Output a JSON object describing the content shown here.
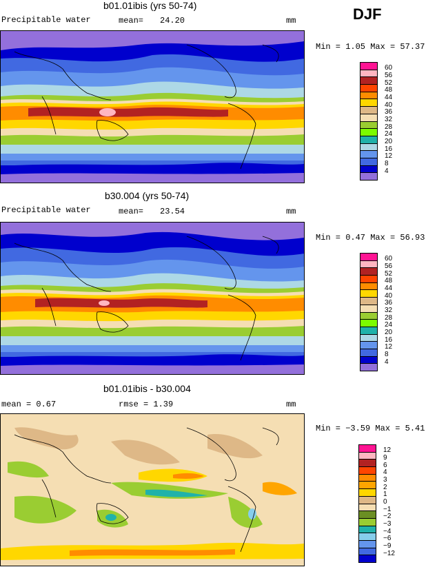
{
  "season": "DJF",
  "panels": [
    {
      "title": "b01.01ibis (yrs 50-74)",
      "field": "Precipitable water",
      "mean_label": "mean=",
      "mean_value": "24.20",
      "units": "mm",
      "minmax": "Min =    1.05 Max =   57.37",
      "levels": [
        "60",
        "56",
        "52",
        "48",
        "44",
        "40",
        "36",
        "32",
        "28",
        "24",
        "20",
        "16",
        "12",
        "8",
        "4"
      ],
      "colors": [
        "#ff1493",
        "#ffb6c1",
        "#b22222",
        "#ff4500",
        "#ff8c00",
        "#ffd700",
        "#deb887",
        "#f5deb3",
        "#9acd32",
        "#7cfc00",
        "#20b2aa",
        "#add8e6",
        "#6495ed",
        "#4169e1",
        "#0000cd",
        "#9370db"
      ]
    },
    {
      "title": "b30.004 (yrs 50-74)",
      "field": "Precipitable water",
      "mean_label": "mean=",
      "mean_value": "23.54",
      "units": "mm",
      "minmax": "Min =    0.47 Max =   56.93",
      "levels": [
        "60",
        "56",
        "52",
        "48",
        "44",
        "40",
        "36",
        "32",
        "28",
        "24",
        "20",
        "16",
        "12",
        "8",
        "4"
      ],
      "colors": [
        "#ff1493",
        "#ffb6c1",
        "#b22222",
        "#ff4500",
        "#ff8c00",
        "#ffd700",
        "#deb887",
        "#f5deb3",
        "#9acd32",
        "#7cfc00",
        "#20b2aa",
        "#add8e6",
        "#6495ed",
        "#4169e1",
        "#0000cd",
        "#9370db"
      ]
    },
    {
      "title": "b01.01ibis - b30.004",
      "mean_text": "mean =    0.67",
      "rmse_text": "rmse =    1.39",
      "units": "mm",
      "minmax": "Min =   −3.59 Max =    5.41",
      "levels": [
        "12",
        "9",
        "6",
        "4",
        "3",
        "2",
        "1",
        "0",
        "−1",
        "−2",
        "−3",
        "−4",
        "−6",
        "−9",
        "−12"
      ],
      "colors": [
        "#ff1493",
        "#ffb6c1",
        "#b22222",
        "#ff4500",
        "#ff8c00",
        "#ffa500",
        "#ffd700",
        "#deb887",
        "#f5deb3",
        "#6b8e23",
        "#9acd32",
        "#20b2aa",
        "#87ceeb",
        "#6495ed",
        "#4169e1",
        "#0000cd"
      ]
    }
  ]
}
